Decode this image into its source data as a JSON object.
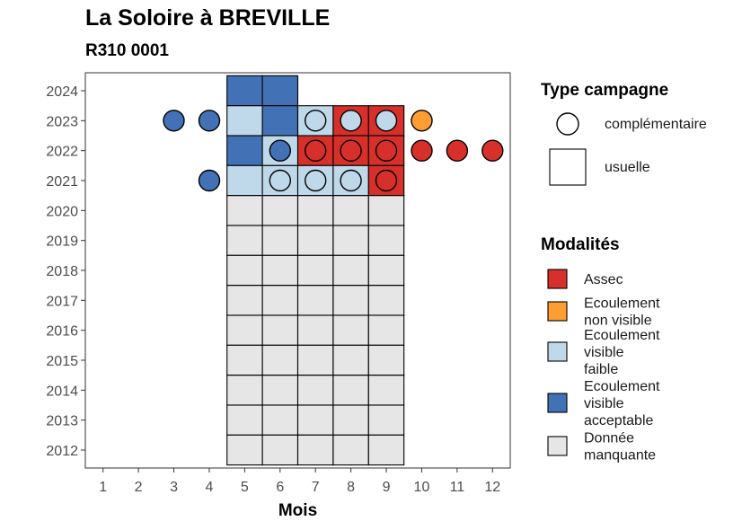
{
  "chart_data": {
    "type": "heatmap",
    "title": "La Soloire à BREVILLE",
    "subtitle": "R310 0001",
    "xlabel": "Mois",
    "ylabel": "",
    "x_ticks": [
      1,
      2,
      3,
      4,
      5,
      6,
      7,
      8,
      9,
      10,
      11,
      12
    ],
    "y_ticks": [
      2012,
      2013,
      2014,
      2015,
      2016,
      2017,
      2018,
      2019,
      2020,
      2021,
      2022,
      2023,
      2024
    ],
    "xlim": [
      0.5,
      12.5
    ],
    "ylim": [
      2011.4,
      2024.6
    ],
    "grid": false,
    "legend_placement": "right",
    "modalites": [
      {
        "key": "assec",
        "label_lines": [
          "Assec"
        ],
        "color": "#d7302b"
      },
      {
        "key": "ecnv",
        "label_lines": [
          "Ecoulement",
          "non visible"
        ],
        "color": "#fd9d32"
      },
      {
        "key": "evf",
        "label_lines": [
          "Ecoulement",
          "visible",
          "faible"
        ],
        "color": "#c0d9ea"
      },
      {
        "key": "eva",
        "label_lines": [
          "Ecoulement",
          "visible",
          "acceptable"
        ],
        "color": "#4371b5"
      },
      {
        "key": "dm",
        "label_lines": [
          "Donnée",
          "manquante"
        ],
        "color": "#e6e6e6"
      }
    ],
    "type_campagne": [
      {
        "key": "complementaire",
        "label": "complémentaire",
        "shape": "circle"
      },
      {
        "key": "usuelle",
        "label": "usuelle",
        "shape": "square"
      }
    ],
    "usuelle": [
      {
        "year": 2024,
        "month": 5,
        "m": "eva"
      },
      {
        "year": 2024,
        "month": 6,
        "m": "eva"
      },
      {
        "year": 2023,
        "month": 5,
        "m": "evf"
      },
      {
        "year": 2023,
        "month": 6,
        "m": "eva"
      },
      {
        "year": 2023,
        "month": 7,
        "m": "evf"
      },
      {
        "year": 2023,
        "month": 8,
        "m": "assec"
      },
      {
        "year": 2023,
        "month": 9,
        "m": "assec"
      },
      {
        "year": 2022,
        "month": 5,
        "m": "eva"
      },
      {
        "year": 2022,
        "month": 6,
        "m": "evf"
      },
      {
        "year": 2022,
        "month": 7,
        "m": "assec"
      },
      {
        "year": 2022,
        "month": 8,
        "m": "assec"
      },
      {
        "year": 2022,
        "month": 9,
        "m": "assec"
      },
      {
        "year": 2021,
        "month": 5,
        "m": "evf"
      },
      {
        "year": 2021,
        "month": 6,
        "m": "evf"
      },
      {
        "year": 2021,
        "month": 7,
        "m": "evf"
      },
      {
        "year": 2021,
        "month": 8,
        "m": "evf"
      },
      {
        "year": 2021,
        "month": 9,
        "m": "assec"
      },
      {
        "year": 2020,
        "month": 5,
        "m": "dm"
      },
      {
        "year": 2020,
        "month": 6,
        "m": "dm"
      },
      {
        "year": 2020,
        "month": 7,
        "m": "dm"
      },
      {
        "year": 2020,
        "month": 8,
        "m": "dm"
      },
      {
        "year": 2020,
        "month": 9,
        "m": "dm"
      },
      {
        "year": 2019,
        "month": 5,
        "m": "dm"
      },
      {
        "year": 2019,
        "month": 6,
        "m": "dm"
      },
      {
        "year": 2019,
        "month": 7,
        "m": "dm"
      },
      {
        "year": 2019,
        "month": 8,
        "m": "dm"
      },
      {
        "year": 2019,
        "month": 9,
        "m": "dm"
      },
      {
        "year": 2018,
        "month": 5,
        "m": "dm"
      },
      {
        "year": 2018,
        "month": 6,
        "m": "dm"
      },
      {
        "year": 2018,
        "month": 7,
        "m": "dm"
      },
      {
        "year": 2018,
        "month": 8,
        "m": "dm"
      },
      {
        "year": 2018,
        "month": 9,
        "m": "dm"
      },
      {
        "year": 2017,
        "month": 5,
        "m": "dm"
      },
      {
        "year": 2017,
        "month": 6,
        "m": "dm"
      },
      {
        "year": 2017,
        "month": 7,
        "m": "dm"
      },
      {
        "year": 2017,
        "month": 8,
        "m": "dm"
      },
      {
        "year": 2017,
        "month": 9,
        "m": "dm"
      },
      {
        "year": 2016,
        "month": 5,
        "m": "dm"
      },
      {
        "year": 2016,
        "month": 6,
        "m": "dm"
      },
      {
        "year": 2016,
        "month": 7,
        "m": "dm"
      },
      {
        "year": 2016,
        "month": 8,
        "m": "dm"
      },
      {
        "year": 2016,
        "month": 9,
        "m": "dm"
      },
      {
        "year": 2015,
        "month": 5,
        "m": "dm"
      },
      {
        "year": 2015,
        "month": 6,
        "m": "dm"
      },
      {
        "year": 2015,
        "month": 7,
        "m": "dm"
      },
      {
        "year": 2015,
        "month": 8,
        "m": "dm"
      },
      {
        "year": 2015,
        "month": 9,
        "m": "dm"
      },
      {
        "year": 2014,
        "month": 5,
        "m": "dm"
      },
      {
        "year": 2014,
        "month": 6,
        "m": "dm"
      },
      {
        "year": 2014,
        "month": 7,
        "m": "dm"
      },
      {
        "year": 2014,
        "month": 8,
        "m": "dm"
      },
      {
        "year": 2014,
        "month": 9,
        "m": "dm"
      },
      {
        "year": 2013,
        "month": 5,
        "m": "dm"
      },
      {
        "year": 2013,
        "month": 6,
        "m": "dm"
      },
      {
        "year": 2013,
        "month": 7,
        "m": "dm"
      },
      {
        "year": 2013,
        "month": 8,
        "m": "dm"
      },
      {
        "year": 2013,
        "month": 9,
        "m": "dm"
      },
      {
        "year": 2012,
        "month": 5,
        "m": "dm"
      },
      {
        "year": 2012,
        "month": 6,
        "m": "dm"
      },
      {
        "year": 2012,
        "month": 7,
        "m": "dm"
      },
      {
        "year": 2012,
        "month": 8,
        "m": "dm"
      },
      {
        "year": 2012,
        "month": 9,
        "m": "dm"
      }
    ],
    "complementaire": [
      {
        "year": 2023,
        "month": 3,
        "m": "eva"
      },
      {
        "year": 2023,
        "month": 4,
        "m": "eva"
      },
      {
        "year": 2023,
        "month": 7,
        "m": "evf"
      },
      {
        "year": 2023,
        "month": 8,
        "m": "evf"
      },
      {
        "year": 2023,
        "month": 9,
        "m": "evf"
      },
      {
        "year": 2023,
        "month": 10,
        "m": "ecnv"
      },
      {
        "year": 2022,
        "month": 6,
        "m": "eva"
      },
      {
        "year": 2022,
        "month": 7,
        "m": "assec"
      },
      {
        "year": 2022,
        "month": 8,
        "m": "assec"
      },
      {
        "year": 2022,
        "month": 9,
        "m": "assec"
      },
      {
        "year": 2022,
        "month": 10,
        "m": "assec"
      },
      {
        "year": 2022,
        "month": 11,
        "m": "assec"
      },
      {
        "year": 2022,
        "month": 12,
        "m": "assec"
      },
      {
        "year": 2021,
        "month": 4,
        "m": "eva"
      },
      {
        "year": 2021,
        "month": 6,
        "m": "evf"
      },
      {
        "year": 2021,
        "month": 7,
        "m": "evf"
      },
      {
        "year": 2021,
        "month": 8,
        "m": "evf"
      },
      {
        "year": 2021,
        "month": 9,
        "m": "assec"
      }
    ],
    "legend_titles": {
      "type": "Type campagne",
      "modalites": "Modalités"
    }
  }
}
